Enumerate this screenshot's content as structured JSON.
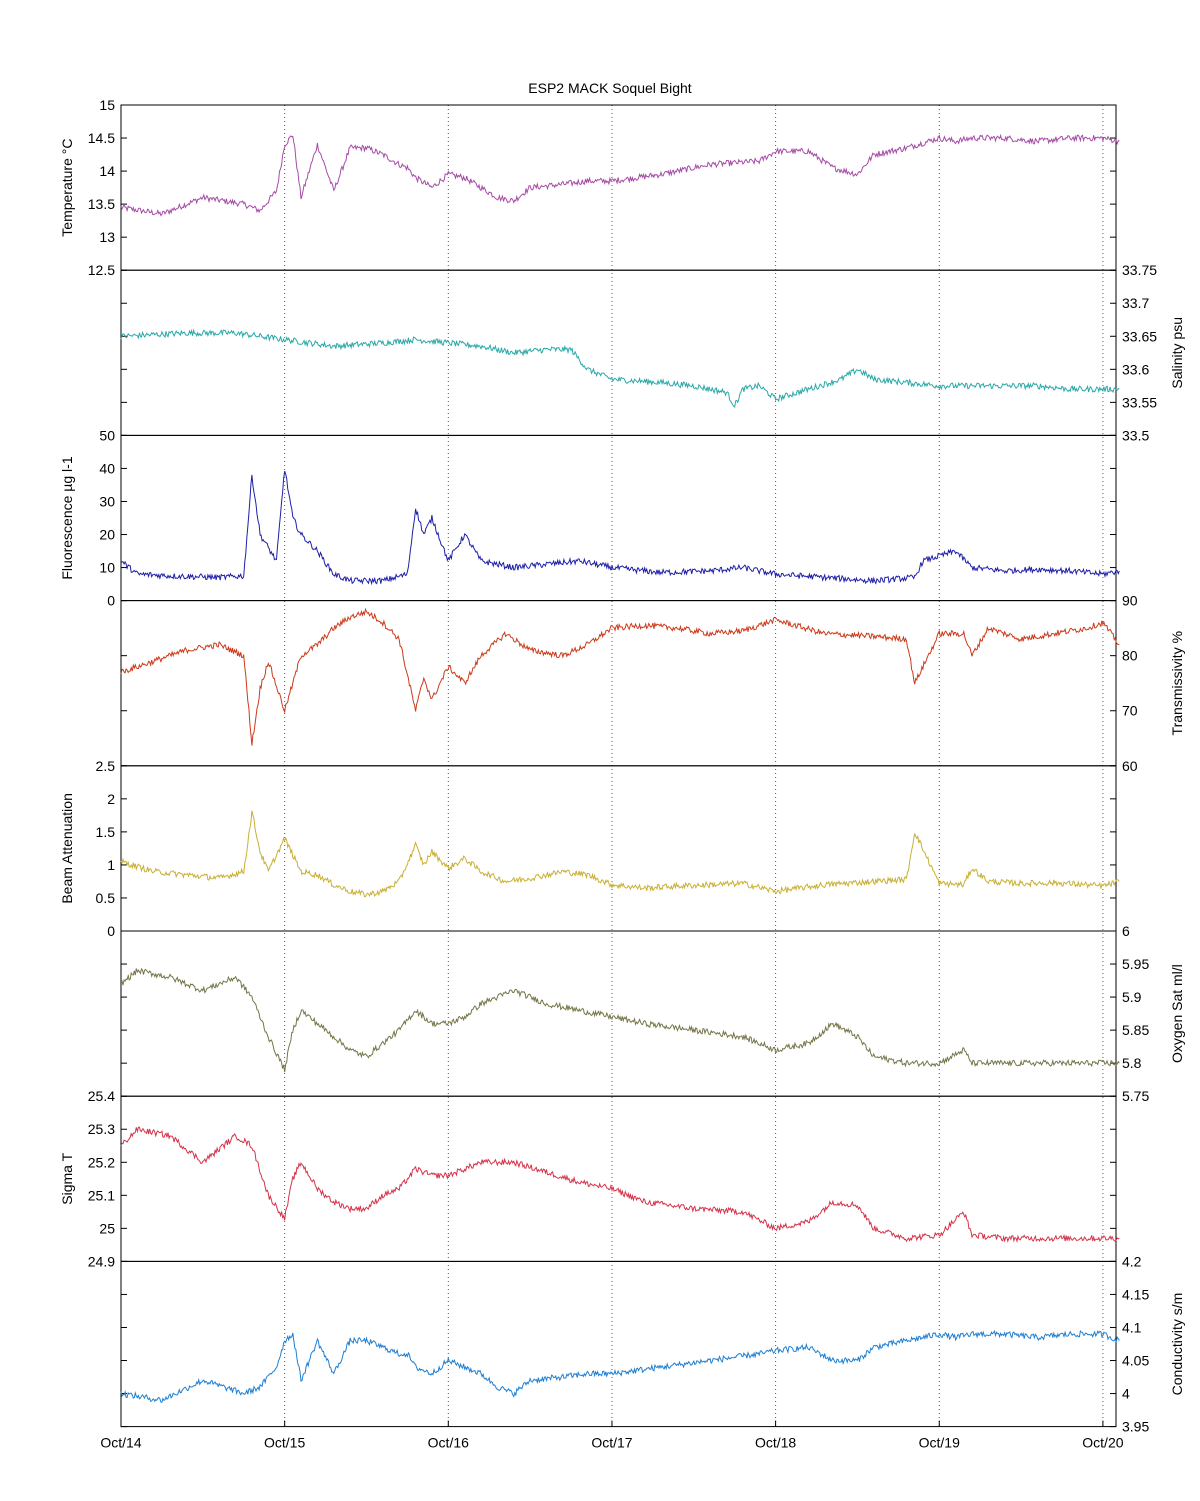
{
  "chart_data": {
    "type": "line",
    "title": "ESP2 MACK  Soquel Bight",
    "x_range": [
      "Oct/14",
      "Oct/20"
    ],
    "x_ticks": [
      "Oct/14",
      "Oct/15",
      "Oct/16",
      "Oct/17",
      "Oct/18",
      "Oct/19",
      "Oct/20"
    ],
    "grid": "vertical dotted lines at each day",
    "legend": "none",
    "panels": [
      {
        "id": "temperature",
        "ylabel": "Temperature °C",
        "axis_side": "left",
        "ylim": [
          12.5,
          15
        ],
        "ticks": [
          "12.5",
          "13",
          "13.5",
          "14",
          "14.5",
          "15"
        ],
        "color": "#a64ca6",
        "series": {
          "x": [
            0,
            0.25,
            0.5,
            0.75,
            0.85,
            0.95,
            1.0,
            1.05,
            1.1,
            1.2,
            1.3,
            1.4,
            1.5,
            1.6,
            1.7,
            1.75,
            1.8,
            1.9,
            2.0,
            2.1,
            2.2,
            2.3,
            2.4,
            2.5,
            2.7,
            2.85,
            3.0,
            3.3,
            3.6,
            3.9,
            4.0,
            4.2,
            4.35,
            4.5,
            4.6,
            4.8,
            5.0,
            5.1,
            5.2,
            5.4,
            5.6,
            5.8,
            6.0,
            6.1
          ],
          "y": [
            13.45,
            13.35,
            13.6,
            13.5,
            13.4,
            13.7,
            14.4,
            14.55,
            13.6,
            14.4,
            13.7,
            14.35,
            14.35,
            14.25,
            14.1,
            14.05,
            13.9,
            13.75,
            13.95,
            13.9,
            13.75,
            13.6,
            13.55,
            13.75,
            13.8,
            13.85,
            13.85,
            13.95,
            14.1,
            14.15,
            14.3,
            14.3,
            14.05,
            13.95,
            14.25,
            14.35,
            14.5,
            14.45,
            14.5,
            14.5,
            14.45,
            14.5,
            14.5,
            14.45
          ]
        }
      },
      {
        "id": "salinity",
        "ylabel": "Salinity psu",
        "axis_side": "right",
        "ylim": [
          33.5,
          33.75
        ],
        "ticks": [
          "33.5",
          "33.55",
          "33.6",
          "33.65",
          "33.7",
          "33.75"
        ],
        "color": "#2aa8a8",
        "series": {
          "x": [
            0,
            0.4,
            0.7,
            1.0,
            1.3,
            1.6,
            1.8,
            2.0,
            2.2,
            2.4,
            2.6,
            2.75,
            2.85,
            3.0,
            3.3,
            3.5,
            3.7,
            3.75,
            3.8,
            3.9,
            4.0,
            4.2,
            4.4,
            4.5,
            4.6,
            4.8,
            5.0,
            5.3,
            5.6,
            5.8,
            6.1
          ],
          "y": [
            33.65,
            33.655,
            33.655,
            33.645,
            33.635,
            33.64,
            33.645,
            33.64,
            33.635,
            33.625,
            33.63,
            33.63,
            33.6,
            33.585,
            33.58,
            33.575,
            33.565,
            33.545,
            33.57,
            33.575,
            33.555,
            33.57,
            33.585,
            33.6,
            33.585,
            33.58,
            33.575,
            33.575,
            33.575,
            33.57,
            33.57
          ]
        }
      },
      {
        "id": "fluorescence",
        "ylabel": "Fluorescence µg l-1",
        "axis_side": "left",
        "ylim": [
          0,
          50
        ],
        "ticks": [
          "0",
          "10",
          "20",
          "30",
          "40",
          "50"
        ],
        "color": "#1f1fa8",
        "series": {
          "x": [
            0,
            0.1,
            0.3,
            0.6,
            0.75,
            0.8,
            0.85,
            0.95,
            1.0,
            1.05,
            1.1,
            1.2,
            1.3,
            1.4,
            1.6,
            1.75,
            1.8,
            1.85,
            1.9,
            2.0,
            2.1,
            2.2,
            2.4,
            2.6,
            2.8,
            3.0,
            3.3,
            3.6,
            3.8,
            4.0,
            4.3,
            4.6,
            4.85,
            4.9,
            5.1,
            5.2,
            5.4,
            5.6,
            5.8,
            6.0,
            6.1
          ],
          "y": [
            12,
            8,
            7.5,
            7,
            7.5,
            38,
            20,
            12,
            40,
            25,
            20,
            15,
            8,
            6,
            6,
            8,
            28,
            20,
            25,
            12,
            20,
            12,
            10,
            11,
            12,
            10,
            8.5,
            9,
            10,
            8,
            7,
            6,
            7,
            12,
            15,
            10,
            9,
            9.5,
            9,
            8,
            9
          ]
        }
      },
      {
        "id": "transmissivity",
        "ylabel": "Transmissivity %",
        "axis_side": "right",
        "ylim": [
          60,
          90
        ],
        "ticks": [
          "60",
          "70",
          "80",
          "90"
        ],
        "color": "#cc3a1a",
        "series": {
          "x": [
            0,
            0.2,
            0.4,
            0.6,
            0.75,
            0.8,
            0.85,
            0.9,
            1.0,
            1.1,
            1.2,
            1.3,
            1.4,
            1.5,
            1.6,
            1.7,
            1.8,
            1.85,
            1.9,
            2.0,
            2.1,
            2.2,
            2.35,
            2.5,
            2.7,
            2.85,
            3.0,
            3.2,
            3.4,
            3.6,
            3.8,
            4.0,
            4.3,
            4.6,
            4.8,
            4.85,
            5.0,
            5.15,
            5.2,
            5.3,
            5.5,
            5.7,
            5.9,
            6.0,
            6.1
          ],
          "y": [
            77,
            79,
            81,
            82,
            80,
            64,
            74,
            79,
            70,
            80,
            82,
            85,
            87,
            88,
            86,
            83,
            70,
            76,
            72,
            78,
            75,
            80,
            84,
            81,
            80,
            82,
            85,
            85.5,
            85,
            84,
            84.5,
            86.5,
            84,
            83.5,
            83,
            75,
            84,
            84,
            80,
            85,
            83,
            84,
            85,
            86,
            82
          ]
        }
      },
      {
        "id": "beam-attenuation",
        "ylabel": "Beam Attenuation",
        "axis_side": "left",
        "ylim": [
          0,
          2.5
        ],
        "ticks": [
          "0",
          "0.5",
          "1",
          "1.5",
          "2",
          "2.5"
        ],
        "color": "#c9b034",
        "series": {
          "x": [
            0,
            0.2,
            0.4,
            0.6,
            0.75,
            0.8,
            0.85,
            0.9,
            1.0,
            1.1,
            1.2,
            1.3,
            1.4,
            1.5,
            1.6,
            1.7,
            1.8,
            1.85,
            1.9,
            2.0,
            2.1,
            2.2,
            2.35,
            2.5,
            2.7,
            2.85,
            3.0,
            3.2,
            3.4,
            3.6,
            3.8,
            4.0,
            4.3,
            4.6,
            4.8,
            4.85,
            5.0,
            5.15,
            5.2,
            5.3,
            5.5,
            5.7,
            5.9,
            6.0,
            6.1
          ],
          "y": [
            1.05,
            0.9,
            0.85,
            0.8,
            0.9,
            1.8,
            1.2,
            0.9,
            1.4,
            0.9,
            0.85,
            0.7,
            0.6,
            0.55,
            0.6,
            0.75,
            1.3,
            1.0,
            1.2,
            0.95,
            1.1,
            0.9,
            0.75,
            0.8,
            0.9,
            0.85,
            0.7,
            0.65,
            0.68,
            0.7,
            0.72,
            0.6,
            0.7,
            0.75,
            0.78,
            1.5,
            0.72,
            0.7,
            0.95,
            0.75,
            0.72,
            0.73,
            0.7,
            0.68,
            0.75
          ]
        }
      },
      {
        "id": "oxygen",
        "ylabel": "Oxygen Sat ml/l",
        "axis_side": "right",
        "ylim": [
          5.75,
          6
        ],
        "ticks": [
          "5.75",
          "5.8",
          "5.85",
          "5.9",
          "5.95",
          "6"
        ],
        "color": "#76764a",
        "series": {
          "x": [
            0,
            0.1,
            0.3,
            0.5,
            0.7,
            0.8,
            0.9,
            1.0,
            1.05,
            1.1,
            1.2,
            1.3,
            1.4,
            1.5,
            1.6,
            1.7,
            1.8,
            1.9,
            2.0,
            2.1,
            2.2,
            2.4,
            2.6,
            2.8,
            3.0,
            3.2,
            3.5,
            3.8,
            4.0,
            4.2,
            4.35,
            4.5,
            4.6,
            4.8,
            5.0,
            5.15,
            5.2,
            5.4,
            5.6,
            5.8,
            6.0,
            6.1
          ],
          "y": [
            5.92,
            5.94,
            5.93,
            5.91,
            5.93,
            5.9,
            5.84,
            5.79,
            5.85,
            5.88,
            5.86,
            5.84,
            5.82,
            5.81,
            5.83,
            5.85,
            5.88,
            5.86,
            5.86,
            5.87,
            5.89,
            5.91,
            5.89,
            5.88,
            5.87,
            5.86,
            5.85,
            5.84,
            5.82,
            5.83,
            5.86,
            5.84,
            5.81,
            5.8,
            5.8,
            5.82,
            5.8,
            5.8,
            5.8,
            5.8,
            5.8,
            5.8
          ]
        }
      },
      {
        "id": "sigma-t",
        "ylabel": "Sigma T",
        "axis_side": "left",
        "ylim": [
          24.9,
          25.4
        ],
        "ticks": [
          "24.9",
          "25",
          "25.1",
          "25.2",
          "25.3",
          "25.4"
        ],
        "color": "#d4334a",
        "series": {
          "x": [
            0,
            0.1,
            0.3,
            0.5,
            0.7,
            0.8,
            0.9,
            1.0,
            1.05,
            1.1,
            1.2,
            1.3,
            1.4,
            1.5,
            1.6,
            1.7,
            1.8,
            1.9,
            2.0,
            2.1,
            2.2,
            2.4,
            2.6,
            2.8,
            3.0,
            3.2,
            3.5,
            3.8,
            4.0,
            4.2,
            4.35,
            4.5,
            4.6,
            4.8,
            5.0,
            5.15,
            5.2,
            5.4,
            5.6,
            5.8,
            6.0,
            6.1
          ],
          "y": [
            25.25,
            25.3,
            25.28,
            25.2,
            25.28,
            25.25,
            25.1,
            25.03,
            25.15,
            25.2,
            25.12,
            25.08,
            25.06,
            25.06,
            25.1,
            25.12,
            25.18,
            25.16,
            25.16,
            25.18,
            25.2,
            25.2,
            25.17,
            25.14,
            25.12,
            25.08,
            25.06,
            25.05,
            25.0,
            25.02,
            25.08,
            25.07,
            25.0,
            24.97,
            24.98,
            25.05,
            24.98,
            24.97,
            24.97,
            24.97,
            24.97,
            24.97
          ]
        }
      },
      {
        "id": "conductivity",
        "ylabel": "Conductivity s/m",
        "axis_side": "right",
        "ylim": [
          3.95,
          4.2
        ],
        "ticks": [
          "3.95",
          "4",
          "4.05",
          "4.1",
          "4.15",
          "4.2"
        ],
        "color": "#1f7fd1",
        "series": {
          "x": [
            0,
            0.25,
            0.5,
            0.75,
            0.85,
            0.95,
            1.0,
            1.05,
            1.1,
            1.2,
            1.3,
            1.4,
            1.5,
            1.6,
            1.7,
            1.75,
            1.8,
            1.9,
            2.0,
            2.1,
            2.2,
            2.3,
            2.4,
            2.5,
            2.7,
            2.85,
            3.0,
            3.3,
            3.6,
            3.9,
            4.0,
            4.2,
            4.35,
            4.5,
            4.6,
            4.8,
            5.0,
            5.1,
            5.2,
            5.4,
            5.6,
            5.8,
            6.0,
            6.1
          ],
          "y": [
            4.0,
            3.99,
            4.02,
            4.0,
            4.01,
            4.04,
            4.08,
            4.09,
            4.02,
            4.08,
            4.03,
            4.08,
            4.08,
            4.07,
            4.06,
            4.06,
            4.04,
            4.03,
            4.05,
            4.04,
            4.03,
            4.01,
            4.0,
            4.02,
            4.025,
            4.03,
            4.03,
            4.04,
            4.05,
            4.06,
            4.065,
            4.07,
            4.05,
            4.05,
            4.07,
            4.08,
            4.09,
            4.085,
            4.09,
            4.09,
            4.085,
            4.09,
            4.09,
            4.08
          ]
        }
      }
    ]
  }
}
